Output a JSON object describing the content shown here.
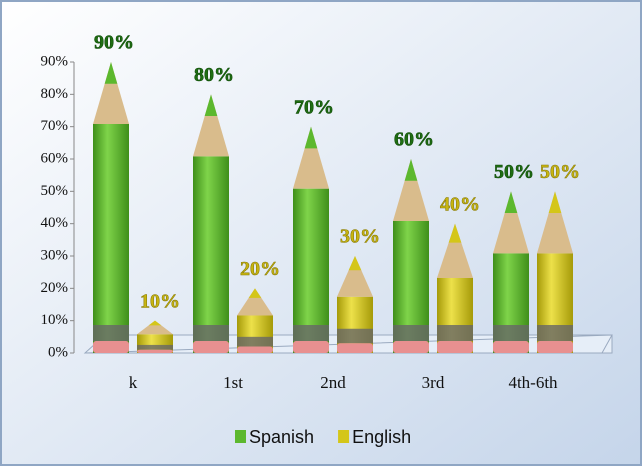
{
  "chart_data": {
    "type": "pencil-bar",
    "categories": [
      "k",
      "1st",
      "2nd",
      "3rd",
      "4th-6th"
    ],
    "series": [
      {
        "name": "Spanish",
        "color": "#5cb82e",
        "values": [
          90,
          80,
          70,
          60,
          50
        ],
        "value_labels": [
          "90%",
          "80%",
          "70%",
          "60%",
          "50%"
        ]
      },
      {
        "name": "English",
        "color": "#d4c619",
        "values": [
          10,
          20,
          30,
          40,
          50
        ],
        "value_labels": [
          "10%",
          "20%",
          "30%",
          "40%",
          "50%"
        ]
      }
    ],
    "ylim": [
      0,
      90
    ],
    "yticks": [
      {
        "value": 0,
        "label": "0%"
      },
      {
        "value": 10,
        "label": "10%"
      },
      {
        "value": 20,
        "label": "20%"
      },
      {
        "value": 30,
        "label": "30%"
      },
      {
        "value": 40,
        "label": "40%"
      },
      {
        "value": 50,
        "label": "50%"
      },
      {
        "value": 60,
        "label": "60%"
      },
      {
        "value": 70,
        "label": "70%"
      },
      {
        "value": 80,
        "label": "80%"
      },
      {
        "value": 90,
        "label": "90%"
      }
    ],
    "legend": "bottom"
  }
}
